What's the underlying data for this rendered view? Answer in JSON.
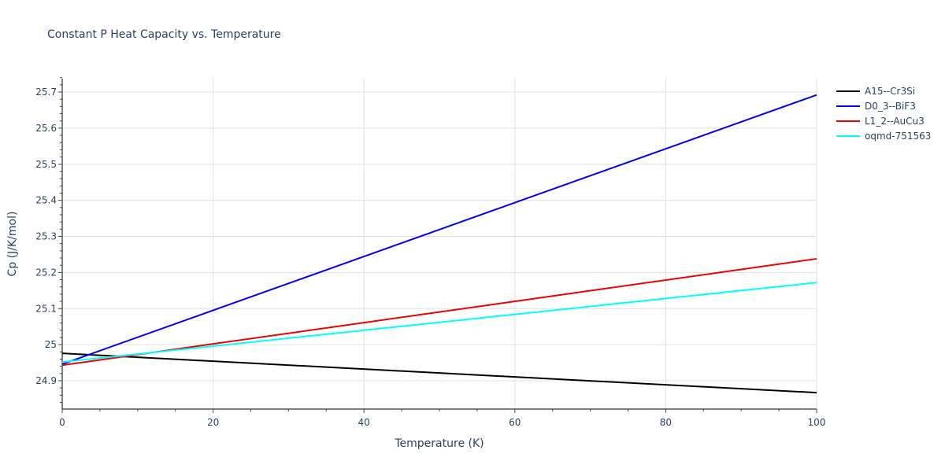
{
  "chart_data": {
    "type": "line",
    "title": "Constant P Heat Capacity vs. Temperature",
    "xlabel": "Temperature (K)",
    "ylabel": "Cp (J/K/mol)",
    "xlim": [
      0,
      100
    ],
    "ylim": [
      24.82,
      25.74
    ],
    "x_ticks": [
      0,
      20,
      40,
      60,
      80,
      100
    ],
    "y_ticks": [
      24.9,
      25,
      25.1,
      25.2,
      25.3,
      25.4,
      25.5,
      25.6,
      25.7
    ],
    "y_tick_labels": [
      "24.9",
      "25",
      "25.1",
      "25.2",
      "25.3",
      "25.4",
      "25.5",
      "25.6",
      "25.7"
    ],
    "grid": true,
    "legend_position": "right",
    "x": [
      0,
      100
    ],
    "series": [
      {
        "name": "A15--Cr3Si",
        "color": "#000000",
        "values": [
          24.976,
          24.867
        ]
      },
      {
        "name": "D0_3--BiF3",
        "color": "#0000ee",
        "values": [
          24.946,
          25.692
        ]
      },
      {
        "name": "L1_2--AuCu3",
        "color": "#ee0000",
        "values": [
          24.943,
          25.238
        ]
      },
      {
        "name": "oqmd-751563",
        "color": "#00ffff",
        "values": [
          24.952,
          25.172
        ]
      }
    ]
  }
}
